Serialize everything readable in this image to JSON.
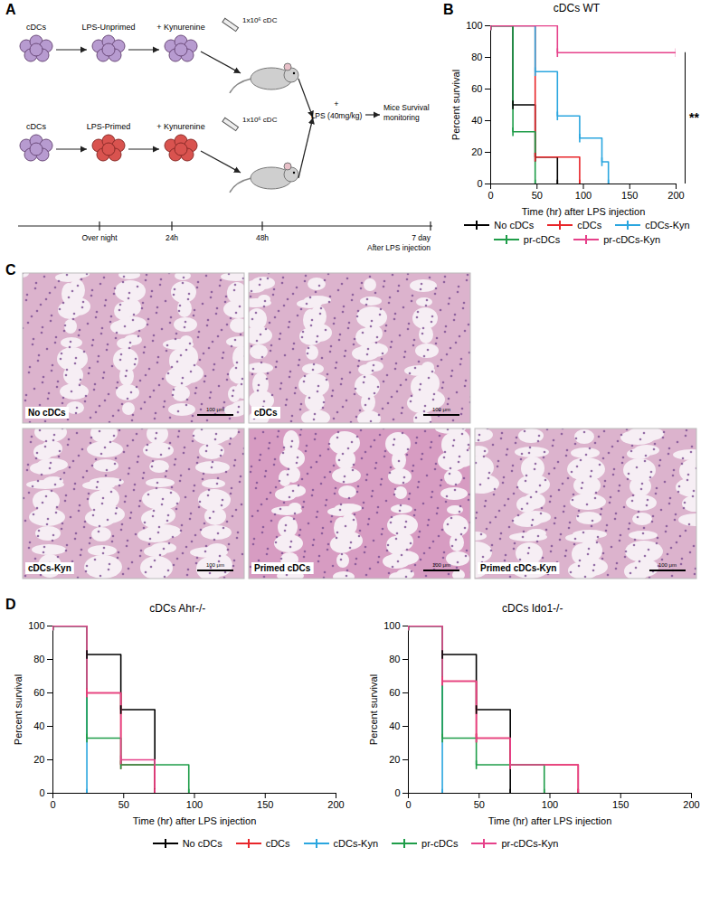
{
  "chart_data": [
    {
      "type": "line",
      "panel_label": "B",
      "title": "cDCs WT",
      "x_label": "Time (hr) after LPS injection",
      "y_label": "Percent survival",
      "xlim": [
        0,
        200
      ],
      "xticks": [
        0,
        50,
        100,
        150,
        200
      ],
      "ylim": [
        0,
        100
      ],
      "yticks": [
        0,
        20,
        40,
        60,
        80,
        100
      ],
      "line_style": "step",
      "marker": "tick",
      "legend": "bottom",
      "series": [
        {
          "name": "No cDCs",
          "color": "#000000",
          "x": [
            0,
            24,
            48,
            72
          ],
          "values": [
            100,
            50,
            17,
            0
          ]
        },
        {
          "name": "cDCs",
          "color": "#e8262a",
          "x": [
            0,
            48,
            96
          ],
          "values": [
            100,
            17,
            0
          ]
        },
        {
          "name": "cDCs-Kyn",
          "color": "#2aa6df",
          "x": [
            0,
            48,
            72,
            96,
            120,
            127
          ],
          "values": [
            100,
            71,
            43,
            29,
            14,
            0
          ]
        },
        {
          "name": "pr-cDCs",
          "color": "#1f9d49",
          "x": [
            0,
            24,
            48
          ],
          "values": [
            100,
            33,
            0
          ]
        },
        {
          "name": "pr-cDCs-Kyn",
          "color": "#e6418a",
          "x": [
            0,
            72,
            200
          ],
          "values": [
            100,
            83,
            83
          ]
        }
      ],
      "annotations": [
        {
          "text": "**",
          "x": 200,
          "y": [
            0,
            83
          ]
        }
      ]
    },
    {
      "type": "line",
      "panel_label": "D",
      "title": "cDCs Ahr-/-",
      "x_label": "Time (hr) after LPS injection",
      "y_label": "Percent survival",
      "xlim": [
        0,
        200
      ],
      "xticks": [
        0,
        50,
        100,
        150,
        200
      ],
      "ylim": [
        0,
        100
      ],
      "yticks": [
        0,
        20,
        40,
        60,
        80,
        100
      ],
      "line_style": "step",
      "marker": "tick",
      "series": [
        {
          "name": "No cDCs",
          "color": "#000000",
          "x": [
            0,
            24,
            48,
            72
          ],
          "values": [
            100,
            83,
            50,
            0
          ]
        },
        {
          "name": "cDCs",
          "color": "#e8262a",
          "x": [
            0,
            24,
            48,
            72
          ],
          "values": [
            100,
            60,
            17,
            0
          ]
        },
        {
          "name": "cDCs-Kyn",
          "color": "#2aa6df",
          "x": [
            0,
            24
          ],
          "values": [
            100,
            0
          ]
        },
        {
          "name": "pr-cDCs",
          "color": "#1f9d49",
          "x": [
            0,
            24,
            48,
            96
          ],
          "values": [
            100,
            33,
            17,
            0
          ]
        },
        {
          "name": "pr-cDCs-Kyn",
          "color": "#e6418a",
          "x": [
            0,
            24,
            48,
            72
          ],
          "values": [
            100,
            60,
            20,
            0
          ]
        }
      ]
    },
    {
      "type": "line",
      "title": "cDCs Ido1-/-",
      "x_label": "Time (hr) after LPS injection",
      "y_label": "Percent survival",
      "xlim": [
        0,
        200
      ],
      "xticks": [
        0,
        50,
        100,
        150,
        200
      ],
      "ylim": [
        0,
        100
      ],
      "yticks": [
        0,
        20,
        40,
        60,
        80,
        100
      ],
      "line_style": "step",
      "marker": "tick",
      "legend": "bottom",
      "series": [
        {
          "name": "No cDCs",
          "color": "#000000",
          "x": [
            0,
            24,
            48,
            72
          ],
          "values": [
            100,
            83,
            50,
            0
          ]
        },
        {
          "name": "cDCs",
          "color": "#e8262a",
          "x": [
            0,
            24,
            48,
            72,
            120
          ],
          "values": [
            100,
            67,
            33,
            17,
            0
          ]
        },
        {
          "name": "cDCs-Kyn",
          "color": "#2aa6df",
          "x": [
            0,
            24
          ],
          "values": [
            100,
            0
          ]
        },
        {
          "name": "pr-cDCs",
          "color": "#1f9d49",
          "x": [
            0,
            24,
            48,
            96
          ],
          "values": [
            100,
            33,
            17,
            0
          ]
        },
        {
          "name": "pr-cDCs-Kyn",
          "color": "#e6418a",
          "x": [
            0,
            24,
            48,
            72,
            120
          ],
          "values": [
            100,
            67,
            33,
            17,
            0
          ]
        }
      ]
    }
  ],
  "diagram": {
    "panel_label": "A",
    "rows": [
      {
        "steps": [
          "cDCs",
          "LPS-Unprimed",
          "+ Kynurenine"
        ],
        "dose": "1x10⁶ cDC"
      },
      {
        "steps": [
          "cDCs",
          "LPS-Primed",
          "+ Kynurenine"
        ],
        "dose": "1x10⁶ cDC"
      }
    ],
    "treatment": [
      "+",
      "LPS (40mg/kg)"
    ],
    "outcome": "Mice Survival monitoring",
    "timeline": [
      [
        "Over night"
      ],
      [
        "24h"
      ],
      [
        "48h"
      ],
      [
        "7 day",
        "After LPS injection"
      ]
    ]
  },
  "histology": {
    "panel_label": "C",
    "scale_bar": "100 μm",
    "images": [
      "No cDCs",
      "cDCs",
      "cDCs-Kyn",
      "Primed cDCs",
      "Primed cDCs-Kyn"
    ]
  }
}
